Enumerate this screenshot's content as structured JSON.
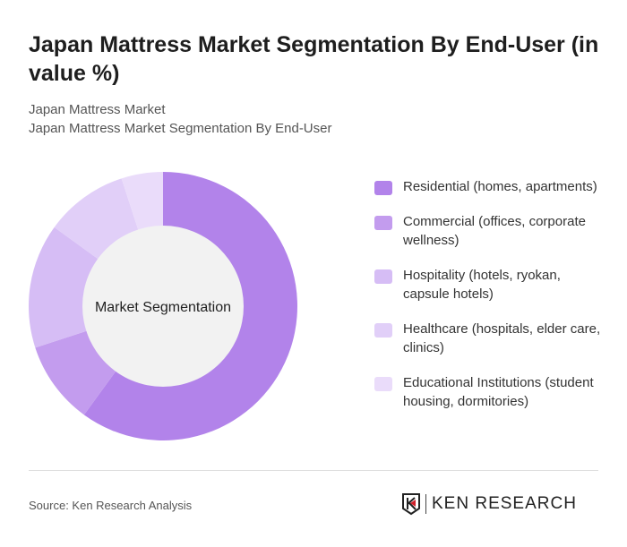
{
  "title": "Japan Mattress Market Segmentation By End-User (in value %)",
  "subtitle1": "Japan Mattress Market",
  "subtitle2": "Japan Mattress Market Segmentation By End-User",
  "source": "Source: Ken Research Analysis",
  "logo_text": "KEN RESEARCH",
  "chart_data": {
    "type": "pie",
    "variant": "donut",
    "center_label": "Market Segmentation",
    "legend_position": "right",
    "categories": [
      "Residential (homes, apartments)",
      "Commercial (offices, corporate wellness)",
      "Hospitality (hotels, ryokan, capsule hotels)",
      "Healthcare (hospitals, elder care, clinics)",
      "Educational Institutions (student housing, dormitories)"
    ],
    "values": [
      60,
      10,
      15,
      10,
      5
    ],
    "colors": [
      "#b283ea",
      "#c39cee",
      "#d6bdf5",
      "#e1cff8",
      "#eadcfa"
    ]
  }
}
